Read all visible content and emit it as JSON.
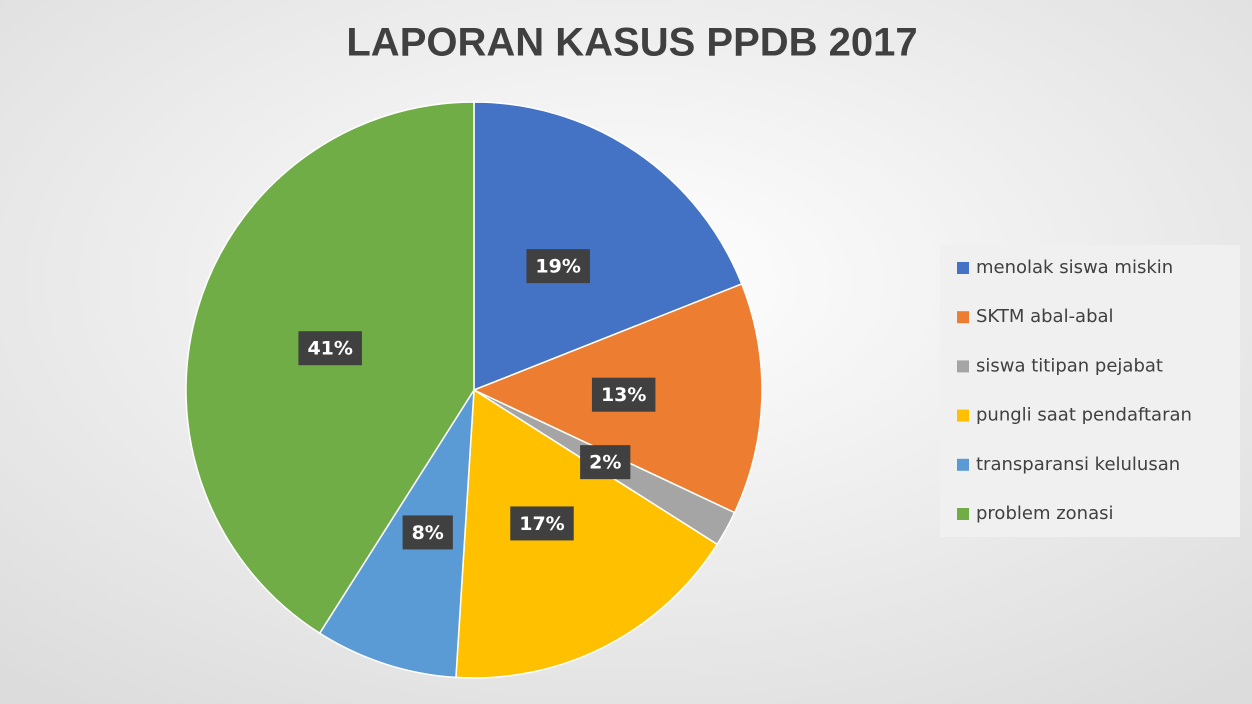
{
  "chart_data": {
    "type": "pie",
    "title": "LAPORAN KASUS PPDB 2017",
    "categories": [
      "menolak siswa miskin",
      "SKTM abal-abal",
      "siswa titipan pejabat",
      "pungli saat pendaftaran",
      "transparansi kelulusan",
      "problem zonasi"
    ],
    "values": [
      19,
      13,
      2,
      17,
      8,
      41
    ],
    "value_labels": [
      "19%",
      "13%",
      "2%",
      "17%",
      "8%",
      "41%"
    ],
    "colors": [
      "#4472c4",
      "#ed7d31",
      "#a5a5a5",
      "#ffc000",
      "#5b9bd5",
      "#70ad47"
    ],
    "legend": "right"
  }
}
